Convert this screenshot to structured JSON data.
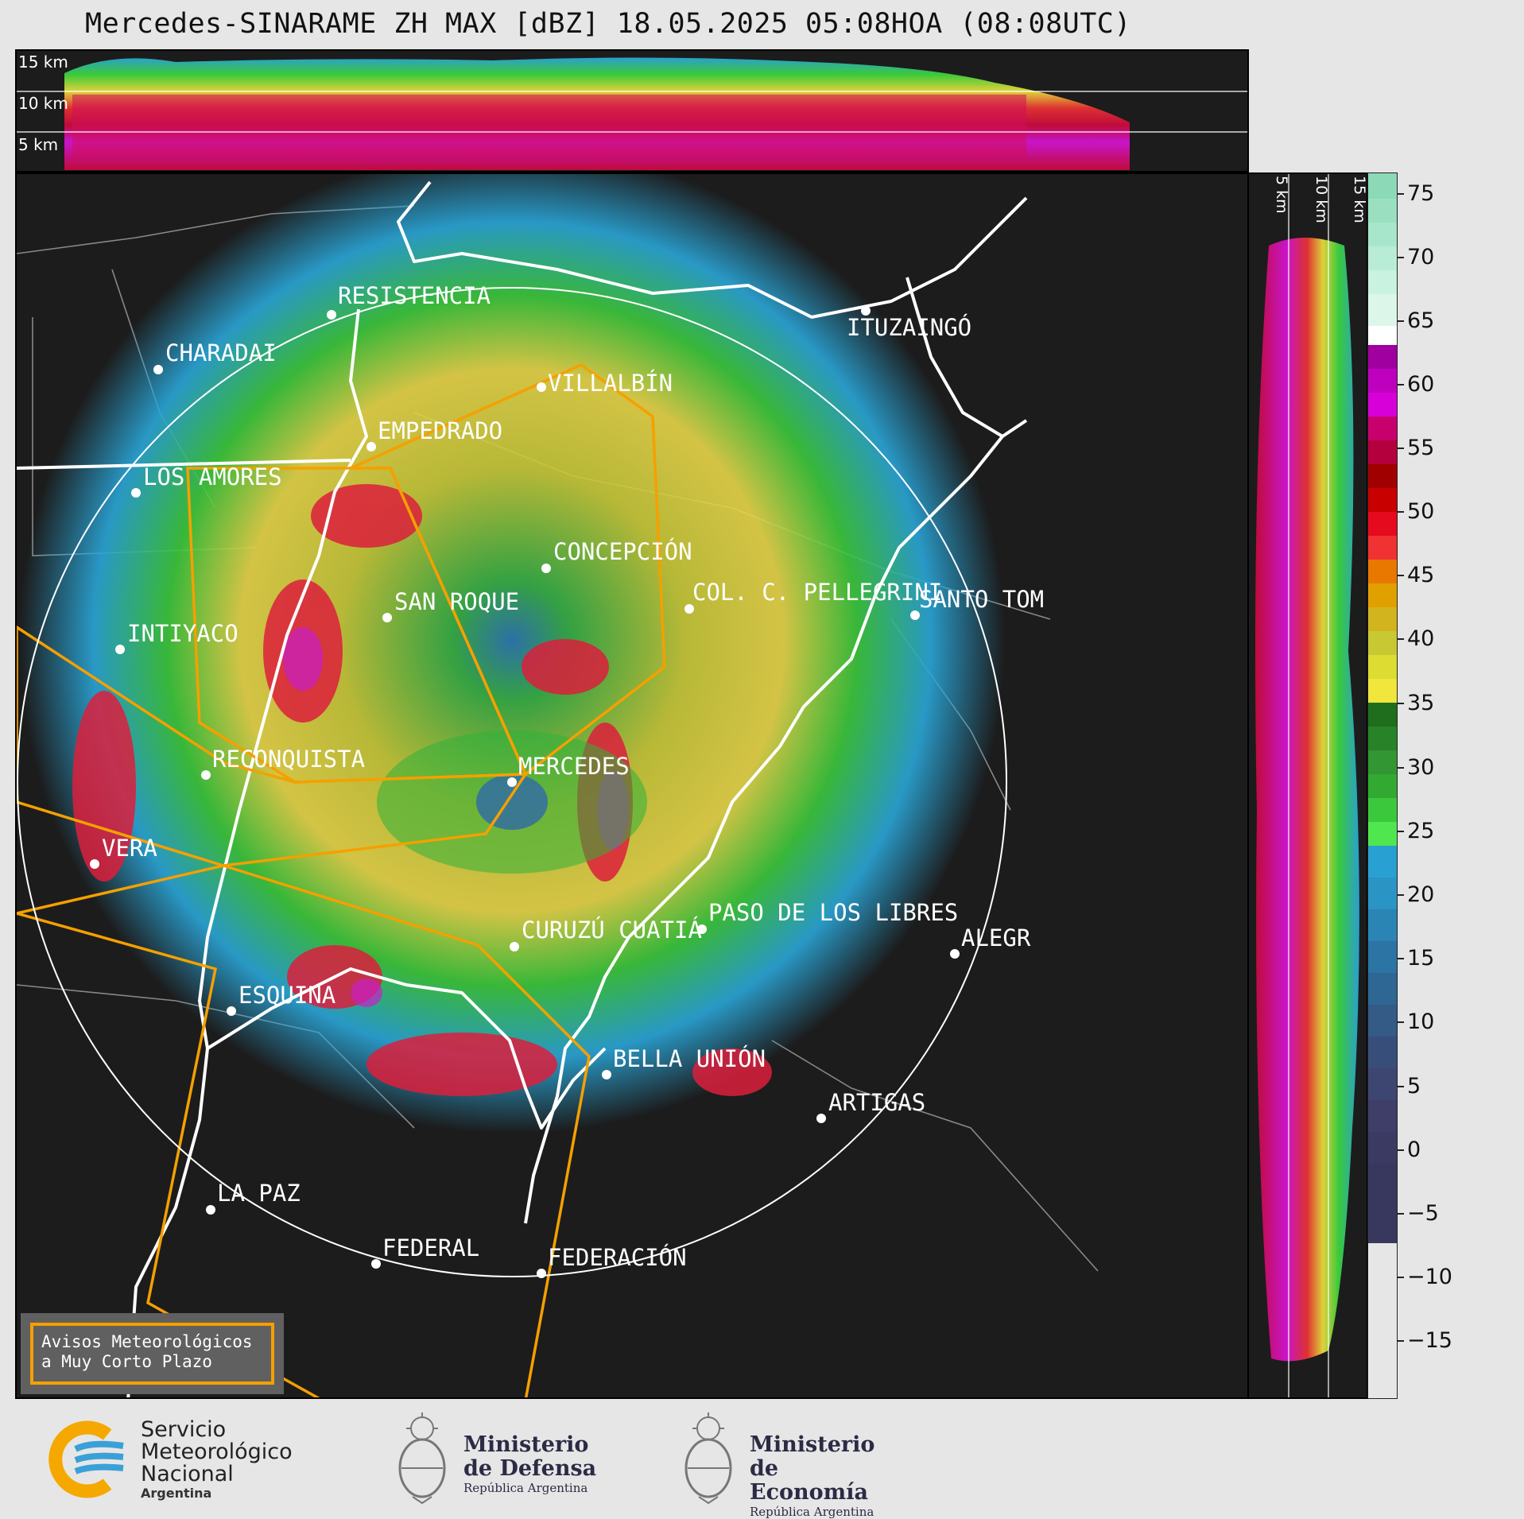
{
  "title": "Mercedes-SINARAME ZH MAX [dBZ] 18.05.2025 05:08HOA (08:08UTC)",
  "top_panel": {
    "height_labels": [
      "15 km",
      "10 km",
      "5 km"
    ]
  },
  "side_panel": {
    "height_labels": [
      "5 km",
      "10 km",
      "15 km"
    ]
  },
  "colorbar": {
    "unit": "dBZ",
    "range": [
      -20,
      77
    ],
    "ticks": [
      "75",
      "70",
      "65",
      "60",
      "55",
      "50",
      "45",
      "40",
      "35",
      "30",
      "25",
      "20",
      "15",
      "10",
      "5",
      "0",
      "−5",
      "−10",
      "−15"
    ]
  },
  "cities": [
    {
      "name": "VILLALBÍN"
    },
    {
      "name": "RESISTENCIA"
    },
    {
      "name": "CHARADAI"
    },
    {
      "name": "ITUZAINGÓ"
    },
    {
      "name": "EMPEDRADO"
    },
    {
      "name": "LOS AMORES"
    },
    {
      "name": "CONCEPCIÓN"
    },
    {
      "name": "SAN ROQUE"
    },
    {
      "name": "COL. C. PELLEGRINI"
    },
    {
      "name": "SANTO TOM"
    },
    {
      "name": "INTIYACO"
    },
    {
      "name": "RECONQUISTA"
    },
    {
      "name": "MERCEDES"
    },
    {
      "name": "VERA"
    },
    {
      "name": "CURUZÚ CUATIÁ"
    },
    {
      "name": "PASO DE LOS LIBRES"
    },
    {
      "name": "ALEGR"
    },
    {
      "name": "ESQUINA"
    },
    {
      "name": "BELLA UNIÓN"
    },
    {
      "name": "ARTIGAS"
    },
    {
      "name": "LA PAZ"
    },
    {
      "name": "FEDERAL"
    },
    {
      "name": "FEDERACIÓN"
    }
  ],
  "legend": {
    "line1": "Avisos Meteorológicos",
    "line2": "a Muy Corto Plazo"
  },
  "footer": {
    "smn": {
      "line1": "Servicio",
      "line2": "Meteorológico",
      "line3": "Nacional",
      "line4": "Argentina"
    },
    "defensa": {
      "line1": "Ministerio",
      "line2": "de Defensa",
      "line3": "República Argentina"
    },
    "economia": {
      "line1": "Ministerio",
      "line2": "de Economía",
      "line3": "República Argentina"
    }
  },
  "colors": {
    "panel_bg": "#1c1c1c",
    "warning_polygon": "#f5a000",
    "range_ring": "#ffffff"
  }
}
